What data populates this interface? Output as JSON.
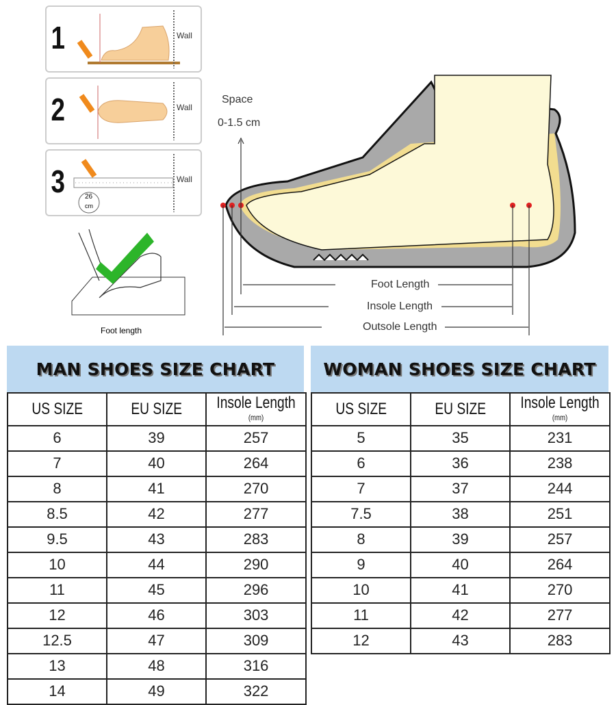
{
  "instructions": {
    "steps": [
      {
        "number": "1",
        "wall": "Wall"
      },
      {
        "number": "2",
        "wall": "Wall"
      },
      {
        "number": "3",
        "wall": "Wall",
        "measure": "26",
        "unit": "cm"
      }
    ],
    "foot_length_caption": "Foot length"
  },
  "diagram": {
    "space_label": "Space",
    "space_value": "0-1.5 cm",
    "foot_length": "Foot Length",
    "insole_length": "Insole Length",
    "outsole_length": "Outsole Length",
    "colors": {
      "shoe": "#a9a9a9",
      "foot": "#fdf9d8",
      "padding": "#f2dd90",
      "marker": "#e02020"
    }
  },
  "man_chart": {
    "title": "MAN SHOES SIZE CHART",
    "headers": {
      "us": "US SIZE",
      "eu": "EU SIZE",
      "insole": "Insole Length",
      "insole_unit": "(mm)"
    },
    "rows": [
      [
        "6",
        "39",
        "257"
      ],
      [
        "7",
        "40",
        "264"
      ],
      [
        "8",
        "41",
        "270"
      ],
      [
        "8.5",
        "42",
        "277"
      ],
      [
        "9.5",
        "43",
        "283"
      ],
      [
        "10",
        "44",
        "290"
      ],
      [
        "11",
        "45",
        "296"
      ],
      [
        "12",
        "46",
        "303"
      ],
      [
        "12.5",
        "47",
        "309"
      ],
      [
        "13",
        "48",
        "316"
      ],
      [
        "14",
        "49",
        "322"
      ]
    ]
  },
  "woman_chart": {
    "title": "WOMAN SHOES SIZE CHART",
    "headers": {
      "us": "US SIZE",
      "eu": "EU SIZE",
      "insole": "Insole Length",
      "insole_unit": "(mm)"
    },
    "rows": [
      [
        "5",
        "35",
        "231"
      ],
      [
        "6",
        "36",
        "238"
      ],
      [
        "7",
        "37",
        "244"
      ],
      [
        "7.5",
        "38",
        "251"
      ],
      [
        "8",
        "39",
        "257"
      ],
      [
        "9",
        "40",
        "264"
      ],
      [
        "10",
        "41",
        "270"
      ],
      [
        "11",
        "42",
        "277"
      ],
      [
        "12",
        "43",
        "283"
      ]
    ]
  },
  "header_color": "#bdd9f1"
}
